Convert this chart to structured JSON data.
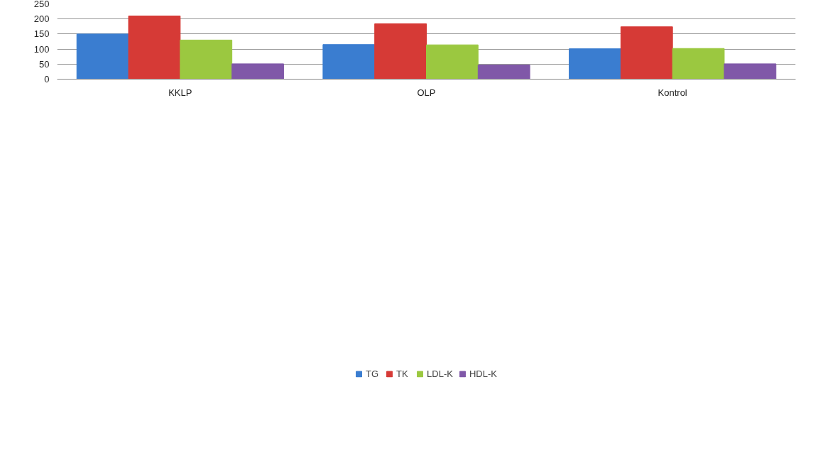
{
  "chart_data": {
    "type": "bar",
    "categories": [
      "KKLP",
      "OLP",
      "Kontrol"
    ],
    "series": [
      {
        "name": "TG",
        "color": "#3a7dd0",
        "values": [
          150,
          115,
          101
        ]
      },
      {
        "name": "TK",
        "color": "#d63a36",
        "values": [
          210,
          184,
          174
        ]
      },
      {
        "name": "LDL-K",
        "color": "#9bc840",
        "values": [
          130,
          114,
          102
        ]
      },
      {
        "name": "HDL-K",
        "color": "#8058a8",
        "values": [
          51,
          47,
          51
        ]
      }
    ],
    "ylim": [
      0,
      250
    ],
    "yticks": [
      0,
      50,
      100,
      150,
      200,
      250
    ],
    "grid": "y",
    "legend": "bottom"
  }
}
